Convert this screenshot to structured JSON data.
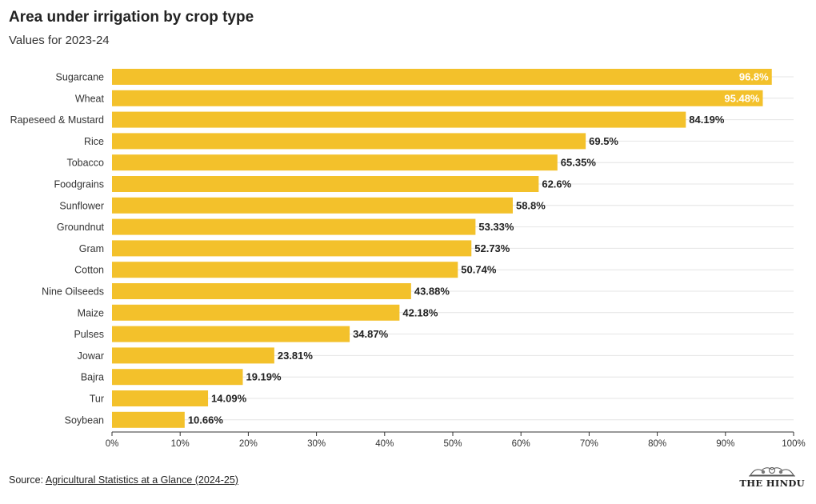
{
  "header": {
    "title": "Area under irrigation by crop type",
    "subtitle": "Values for 2023-24"
  },
  "footer": {
    "source_prefix": "Source: ",
    "source_link": "Agricultural Statistics at a Glance (2024-25)",
    "brand": "THE HINDU"
  },
  "colors": {
    "bar": "#f3c12b",
    "label_inside": "#ffffff",
    "label_outside": "#222222",
    "grid": "#e4e4e4",
    "axis": "#333333"
  },
  "chart_data": {
    "type": "bar",
    "orientation": "horizontal",
    "title": "Area under irrigation by crop type",
    "subtitle": "Values for 2023-24",
    "categories": [
      "Sugarcane",
      "Wheat",
      "Rapeseed & Mustard",
      "Rice",
      "Tobacco",
      "Foodgrains",
      "Sunflower",
      "Groundnut",
      "Gram",
      "Cotton",
      "Nine Oilseeds",
      "Maize",
      "Pulses",
      "Jowar",
      "Bajra",
      "Tur",
      "Soybean"
    ],
    "values": [
      96.8,
      95.48,
      84.19,
      69.5,
      65.35,
      62.6,
      58.8,
      53.33,
      52.73,
      50.74,
      43.88,
      42.18,
      34.87,
      23.81,
      19.19,
      14.09,
      10.66
    ],
    "value_labels": [
      "96.8%",
      "95.48%",
      "84.19%",
      "69.5%",
      "65.35%",
      "62.6%",
      "58.8%",
      "53.33%",
      "52.73%",
      "50.74%",
      "43.88%",
      "42.18%",
      "34.87%",
      "23.81%",
      "19.19%",
      "14.09%",
      "10.66%"
    ],
    "xlim": [
      0,
      100
    ],
    "xticks": [
      0,
      10,
      20,
      30,
      40,
      50,
      60,
      70,
      80,
      90,
      100
    ],
    "xtick_labels": [
      "0%",
      "10%",
      "20%",
      "30%",
      "40%",
      "50%",
      "60%",
      "70%",
      "80%",
      "90%",
      "100%"
    ],
    "xlabel": "",
    "ylabel": "",
    "grid": true,
    "legend": false
  }
}
